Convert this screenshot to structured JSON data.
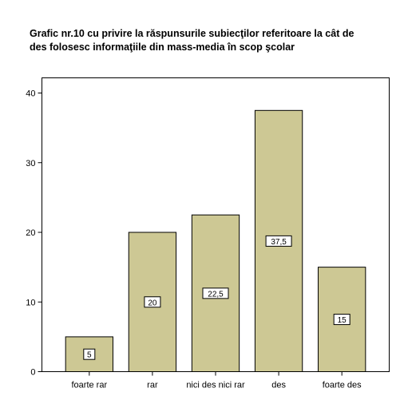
{
  "title_line1": "Grafic nr.10 cu privire la răspunsurile subiecţilor referitoare la cât de",
  "title_line2": "des folosesc informaţiile din mass-media în scop şcolar",
  "chart_data": {
    "type": "bar",
    "title": "Grafic nr.10 cu privire la răspunsurile subiecţilor referitoare la cât de des folosesc informaţiile din mass-media în scop şcolar",
    "categories": [
      "foarte rar",
      "rar",
      "nici des nici rar",
      "des",
      "foarte des"
    ],
    "values": [
      5,
      20,
      22.5,
      37.5,
      15
    ],
    "data_labels": [
      "5",
      "20",
      "22,5",
      "37,5",
      "15"
    ],
    "ylim": [
      0,
      40
    ],
    "yticks": [
      0,
      10,
      20,
      30,
      40
    ],
    "ytick_labels": [
      "0",
      "10",
      "20",
      "30",
      "40"
    ],
    "bar_color": "#cdc894",
    "grid": false,
    "legend": "none"
  }
}
